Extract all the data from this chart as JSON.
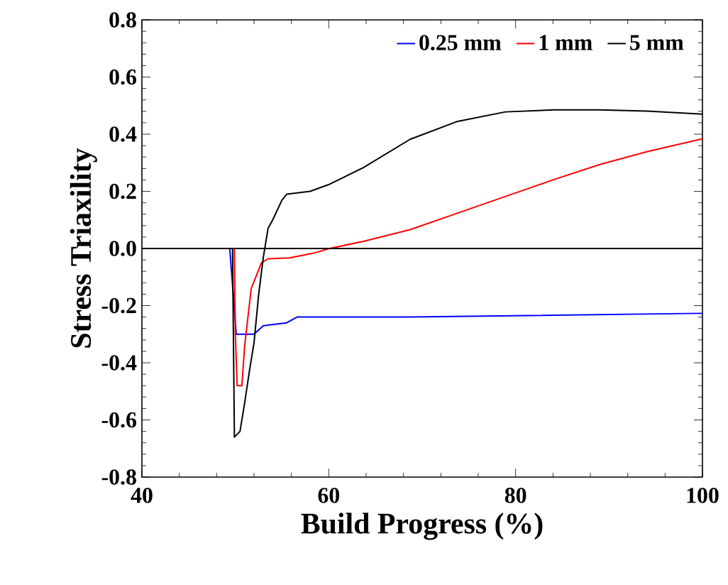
{
  "chart_data": {
    "type": "line",
    "xlabel": "Build Progress (%)",
    "ylabel": "Stress Triaxility",
    "xlim": [
      40,
      100
    ],
    "ylim": [
      -0.8,
      0.8
    ],
    "xticks": [
      40,
      60,
      80,
      100
    ],
    "yticks": [
      {
        "value": -0.8,
        "label": "-0.8"
      },
      {
        "value": -0.6,
        "label": "-0.6"
      },
      {
        "value": -0.4,
        "label": "-0.4"
      },
      {
        "value": -0.2,
        "label": "-0.2"
      },
      {
        "value": 0,
        "label": "0.0"
      },
      {
        "value": 0.2,
        "label": "0.2"
      },
      {
        "value": 0.4,
        "label": "0.4"
      },
      {
        "value": 0.6,
        "label": "0.6"
      },
      {
        "value": 0.8,
        "label": "0.8"
      }
    ],
    "legend": "top right",
    "grid": false,
    "marker": "none",
    "line_style": "solid",
    "ref_lines": [
      {
        "axis": "y",
        "value": 0,
        "color": "#000000"
      }
    ],
    "series": [
      {
        "name": "0.25 mm",
        "color": "#0000ff",
        "x": [
          40,
          49.4,
          50.1,
          52.0,
          53.0,
          55.5,
          56.6,
          58.6,
          59.6,
          64.2,
          68.7,
          99.6,
          100
        ],
        "values": [
          0,
          0,
          -0.3,
          -0.3,
          -0.27,
          -0.26,
          -0.24,
          -0.24,
          -0.24,
          -0.24,
          -0.24,
          -0.227,
          -0.227
        ]
      },
      {
        "name": "1 mm",
        "color": "#ff0000",
        "x": [
          40,
          49.9,
          50.0,
          50.2,
          50.7,
          51.0,
          51.7,
          52.8,
          53.5,
          55.8,
          58.3,
          60.1,
          63.7,
          68.7,
          73.8,
          78.9,
          84.0,
          89.0,
          94.1,
          100
        ],
        "values": [
          0,
          0,
          -0.3,
          -0.48,
          -0.48,
          -0.34,
          -0.14,
          -0.05,
          -0.036,
          -0.033,
          -0.017,
          0,
          0.025,
          0.066,
          0.124,
          0.182,
          0.24,
          0.294,
          0.339,
          0.384
        ]
      },
      {
        "name": "5 mm",
        "color": "#000000",
        "x": [
          40,
          49.7,
          49.9,
          50.5,
          51.0,
          51.5,
          52.0,
          52.5,
          53.0,
          53.5,
          54.0,
          55.0,
          55.5,
          58.0,
          60.1,
          63.7,
          68.7,
          73.8,
          78.9,
          84.0,
          89.0,
          94.1,
          100
        ],
        "values": [
          0,
          0,
          -0.66,
          -0.64,
          -0.54,
          -0.43,
          -0.33,
          -0.16,
          -0.03,
          0.07,
          0.1,
          0.17,
          0.19,
          0.2,
          0.225,
          0.283,
          0.382,
          0.445,
          0.478,
          0.485,
          0.485,
          0.481,
          0.47
        ]
      }
    ]
  }
}
